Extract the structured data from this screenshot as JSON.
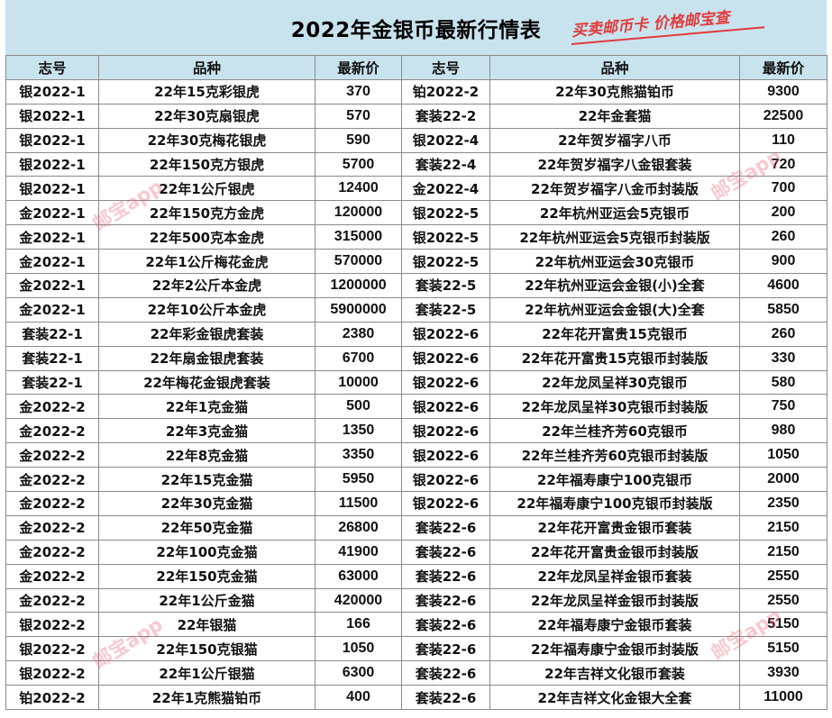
{
  "title": "2022年金银币最新行情表",
  "slogan": "买卖邮币卡 价格邮宝查",
  "watermark": "邮宝app",
  "headers": [
    "志号",
    "品种",
    "最新价",
    "志号",
    "品种",
    "最新价"
  ],
  "rows": [
    [
      "银2022-1",
      "22年15克彩银虎",
      "370",
      "铂2022-2",
      "22年30克熊猫铂币",
      "9300"
    ],
    [
      "银2022-1",
      "22年30克扇银虎",
      "570",
      "套装22-2",
      "22年金套猫",
      "22500"
    ],
    [
      "银2022-1",
      "22年30克梅花银虎",
      "590",
      "银2022-4",
      "22年贺岁福字八币",
      "110"
    ],
    [
      "银2022-1",
      "22年150克方银虎",
      "5700",
      "套装22-4",
      "22年贺岁福字八金银套装",
      "720"
    ],
    [
      "银2022-1",
      "22年1公斤银虎",
      "12400",
      "金2022-4",
      "22年贺岁福字八金币封装版",
      "700"
    ],
    [
      "金2022-1",
      "22年150克方金虎",
      "120000",
      "银2022-5",
      "22年杭州亚运会5克银币",
      "200"
    ],
    [
      "金2022-1",
      "22年500克本金虎",
      "315000",
      "银2022-5",
      "22年杭州亚运会5克银币封装版",
      "260"
    ],
    [
      "金2022-1",
      "22年1公斤梅花金虎",
      "570000",
      "银2022-5",
      "22年杭州亚运会30克银币",
      "900"
    ],
    [
      "金2022-1",
      "22年2公斤本金虎",
      "1200000",
      "套装22-5",
      "22年杭州亚运会金银(小)全套",
      "4600"
    ],
    [
      "金2022-1",
      "22年10公斤本金虎",
      "5900000",
      "套装22-5",
      "22年杭州亚运会金银(大)全套",
      "5850"
    ],
    [
      "套装22-1",
      "22年彩金银虎套装",
      "2380",
      "银2022-6",
      "22年花开富贵15克银币",
      "260"
    ],
    [
      "套装22-1",
      "22年扇金银虎套装",
      "6700",
      "银2022-6",
      "22年花开富贵15克银币封装版",
      "330"
    ],
    [
      "套装22-1",
      "22年梅花金银虎套装",
      "10000",
      "银2022-6",
      "22年龙凤呈祥30克银币",
      "580"
    ],
    [
      "金2022-2",
      "22年1克金猫",
      "500",
      "银2022-6",
      "22年龙凤呈祥30克银币封装版",
      "750"
    ],
    [
      "金2022-2",
      "22年3克金猫",
      "1350",
      "银2022-6",
      "22年兰桂齐芳60克银币",
      "980"
    ],
    [
      "金2022-2",
      "22年8克金猫",
      "3350",
      "银2022-6",
      "22年兰桂齐芳60克银币封装版",
      "1050"
    ],
    [
      "金2022-2",
      "22年15克金猫",
      "5950",
      "银2022-6",
      "22年福寿康宁100克银币",
      "2000"
    ],
    [
      "金2022-2",
      "22年30克金猫",
      "11500",
      "银2022-6",
      "22年福寿康宁100克银币封装版",
      "2350"
    ],
    [
      "金2022-2",
      "22年50克金猫",
      "26800",
      "套装22-6",
      "22年花开富贵金银币套装",
      "2150"
    ],
    [
      "金2022-2",
      "22年100克金猫",
      "41900",
      "套装22-6",
      "22年花开富贵金银币封装版",
      "2150"
    ],
    [
      "金2022-2",
      "22年150克金猫",
      "63000",
      "套装22-6",
      "22年龙凤呈祥金银币套装",
      "2550"
    ],
    [
      "金2022-2",
      "22年1公斤金猫",
      "420000",
      "套装22-6",
      "22年龙凤呈祥金银币封装版",
      "2550"
    ],
    [
      "银2022-2",
      "22年银猫",
      "166",
      "套装22-6",
      "22年福寿康宁金银币套装",
      "5150"
    ],
    [
      "银2022-2",
      "22年150克银猫",
      "1050",
      "套装22-6",
      "22年福寿康宁金银币封装版",
      "5150"
    ],
    [
      "银2022-2",
      "22年1公斤银猫",
      "6300",
      "套装22-6",
      "22年吉祥文化银币套装",
      "3930"
    ],
    [
      "铂2022-2",
      "22年1克熊猫铂币",
      "400",
      "套装22-6",
      "22年吉祥文化金银大全套",
      "11000"
    ]
  ]
}
